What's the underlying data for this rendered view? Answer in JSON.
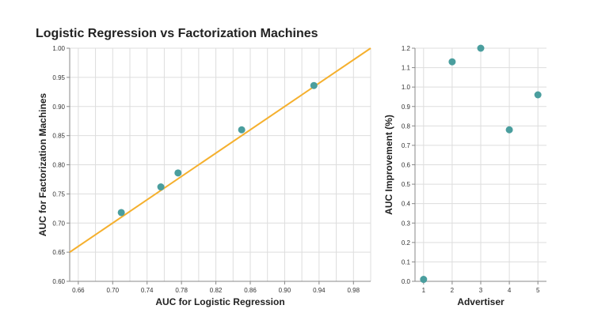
{
  "chart_data": [
    {
      "type": "scatter",
      "title": "Logistic Regression vs Factorization Machines",
      "xlabel": "AUC for Logistic Regression",
      "ylabel": "AUC for Factorization Machines",
      "xlim": [
        0.65,
        1.0
      ],
      "ylim": [
        0.6,
        1.0
      ],
      "xticks": [
        "0.66",
        "0.70",
        "0.74",
        "0.78",
        "0.82",
        "0.86",
        "0.90",
        "0.94",
        "0.98"
      ],
      "xtick_values": [
        0.66,
        0.7,
        0.74,
        0.78,
        0.82,
        0.86,
        0.9,
        0.94,
        0.98
      ],
      "yticks": [
        "0.60",
        "0.65",
        "0.70",
        "0.75",
        "0.80",
        "0.85",
        "0.90",
        "0.95",
        "1.00"
      ],
      "ytick_values": [
        0.6,
        0.65,
        0.7,
        0.75,
        0.8,
        0.85,
        0.9,
        0.95,
        1.0
      ],
      "x_grid_values": [
        0.66,
        0.68,
        0.7,
        0.72,
        0.74,
        0.76,
        0.78,
        0.8,
        0.82,
        0.84,
        0.86,
        0.88,
        0.9,
        0.92,
        0.94,
        0.96,
        0.98,
        1.0
      ],
      "grid": true,
      "points": [
        {
          "x": 0.71,
          "y": 0.718
        },
        {
          "x": 0.756,
          "y": 0.762
        },
        {
          "x": 0.776,
          "y": 0.786
        },
        {
          "x": 0.85,
          "y": 0.86
        },
        {
          "x": 0.934,
          "y": 0.936
        }
      ],
      "reference_line": {
        "x": [
          0.65,
          1.0
        ],
        "y": [
          0.65,
          1.0
        ]
      },
      "point_color": "#4a9e9e",
      "line_color": "#f5b02e"
    },
    {
      "type": "scatter",
      "xlabel": "Advertiser",
      "ylabel": "AUC Improvement (%)",
      "xlim": [
        0.7,
        5.3
      ],
      "ylim": [
        0.0,
        1.2
      ],
      "xticks": [
        "1",
        "2",
        "3",
        "4",
        "5"
      ],
      "xtick_values": [
        1,
        2,
        3,
        4,
        5
      ],
      "yticks": [
        "0.0",
        "0.1",
        "0.2",
        "0.3",
        "0.4",
        "0.5",
        "0.6",
        "0.7",
        "0.8",
        "0.9",
        "1.0",
        "1.1",
        "1.2"
      ],
      "ytick_values": [
        0.0,
        0.1,
        0.2,
        0.3,
        0.4,
        0.5,
        0.6,
        0.7,
        0.8,
        0.9,
        1.0,
        1.1,
        1.2
      ],
      "grid": true,
      "points": [
        {
          "x": 1,
          "y": 0.01
        },
        {
          "x": 2,
          "y": 1.13
        },
        {
          "x": 3,
          "y": 1.2
        },
        {
          "x": 4,
          "y": 0.78
        },
        {
          "x": 5,
          "y": 0.96
        }
      ],
      "point_color": "#4a9e9e"
    }
  ]
}
